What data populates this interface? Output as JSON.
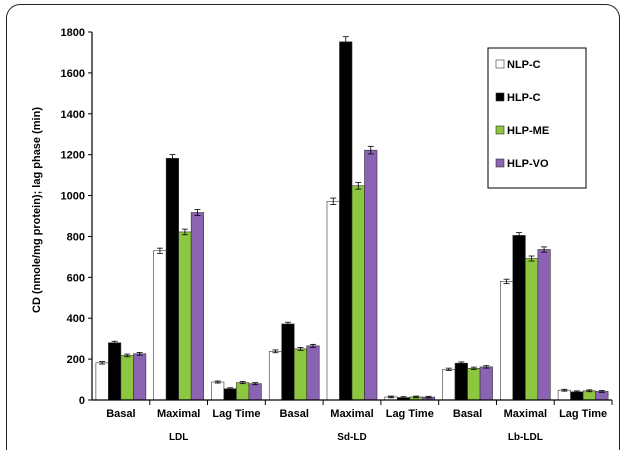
{
  "chart_data": {
    "type": "bar",
    "ylabel": "CD (nmole/mg protein); lag phase (min)",
    "ylim": [
      0,
      1800
    ],
    "yticks": [
      0,
      200,
      400,
      600,
      800,
      1000,
      1200,
      1400,
      1600,
      1800
    ],
    "grid": false,
    "legend_position": "top-right",
    "categories": [
      "Basal",
      "Maximal",
      "Lag Time",
      "Basal",
      "Maximal",
      "Lag Time",
      "Basal",
      "Maximal",
      "Lag Time"
    ],
    "groups": [
      {
        "label": "LDL",
        "span": [
          0,
          2
        ]
      },
      {
        "label": "Sd-LD",
        "span": [
          3,
          5
        ]
      },
      {
        "label": "Lb-LDL",
        "span": [
          6,
          8
        ]
      }
    ],
    "series": [
      {
        "name": "NLP-C",
        "color": "#ffffff",
        "values": [
          182,
          730,
          88,
          238,
          972,
          15,
          150,
          580,
          48
        ]
      },
      {
        "name": "HLP-C",
        "color": "#000000",
        "values": [
          280,
          1182,
          55,
          372,
          1752,
          12,
          180,
          805,
          40
        ]
      },
      {
        "name": "HLP-ME",
        "color": "#8dc63f",
        "values": [
          218,
          822,
          85,
          250,
          1048,
          15,
          155,
          692,
          45
        ]
      },
      {
        "name": "HLP-VO",
        "color": "#8a63b3",
        "values": [
          226,
          917,
          80,
          265,
          1222,
          14,
          162,
          736,
          42
        ]
      }
    ]
  }
}
